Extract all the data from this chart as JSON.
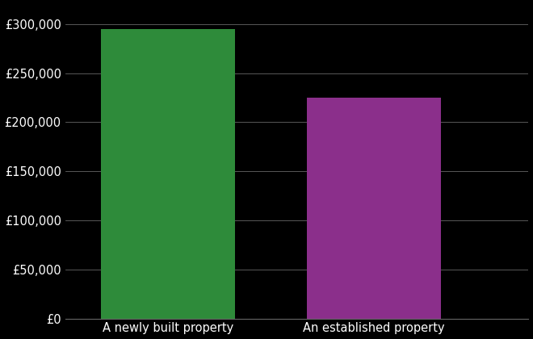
{
  "categories": [
    "A newly built property",
    "An established property"
  ],
  "values": [
    295000,
    225000
  ],
  "bar_colors": [
    "#2e8b3a",
    "#8b2f8b"
  ],
  "background_color": "#000000",
  "text_color": "#ffffff",
  "grid_color": "#666666",
  "ylim": [
    0,
    320000
  ],
  "ytick_step": 50000,
  "tick_label_fontsize": 10.5,
  "xlabel_fontsize": 10.5
}
